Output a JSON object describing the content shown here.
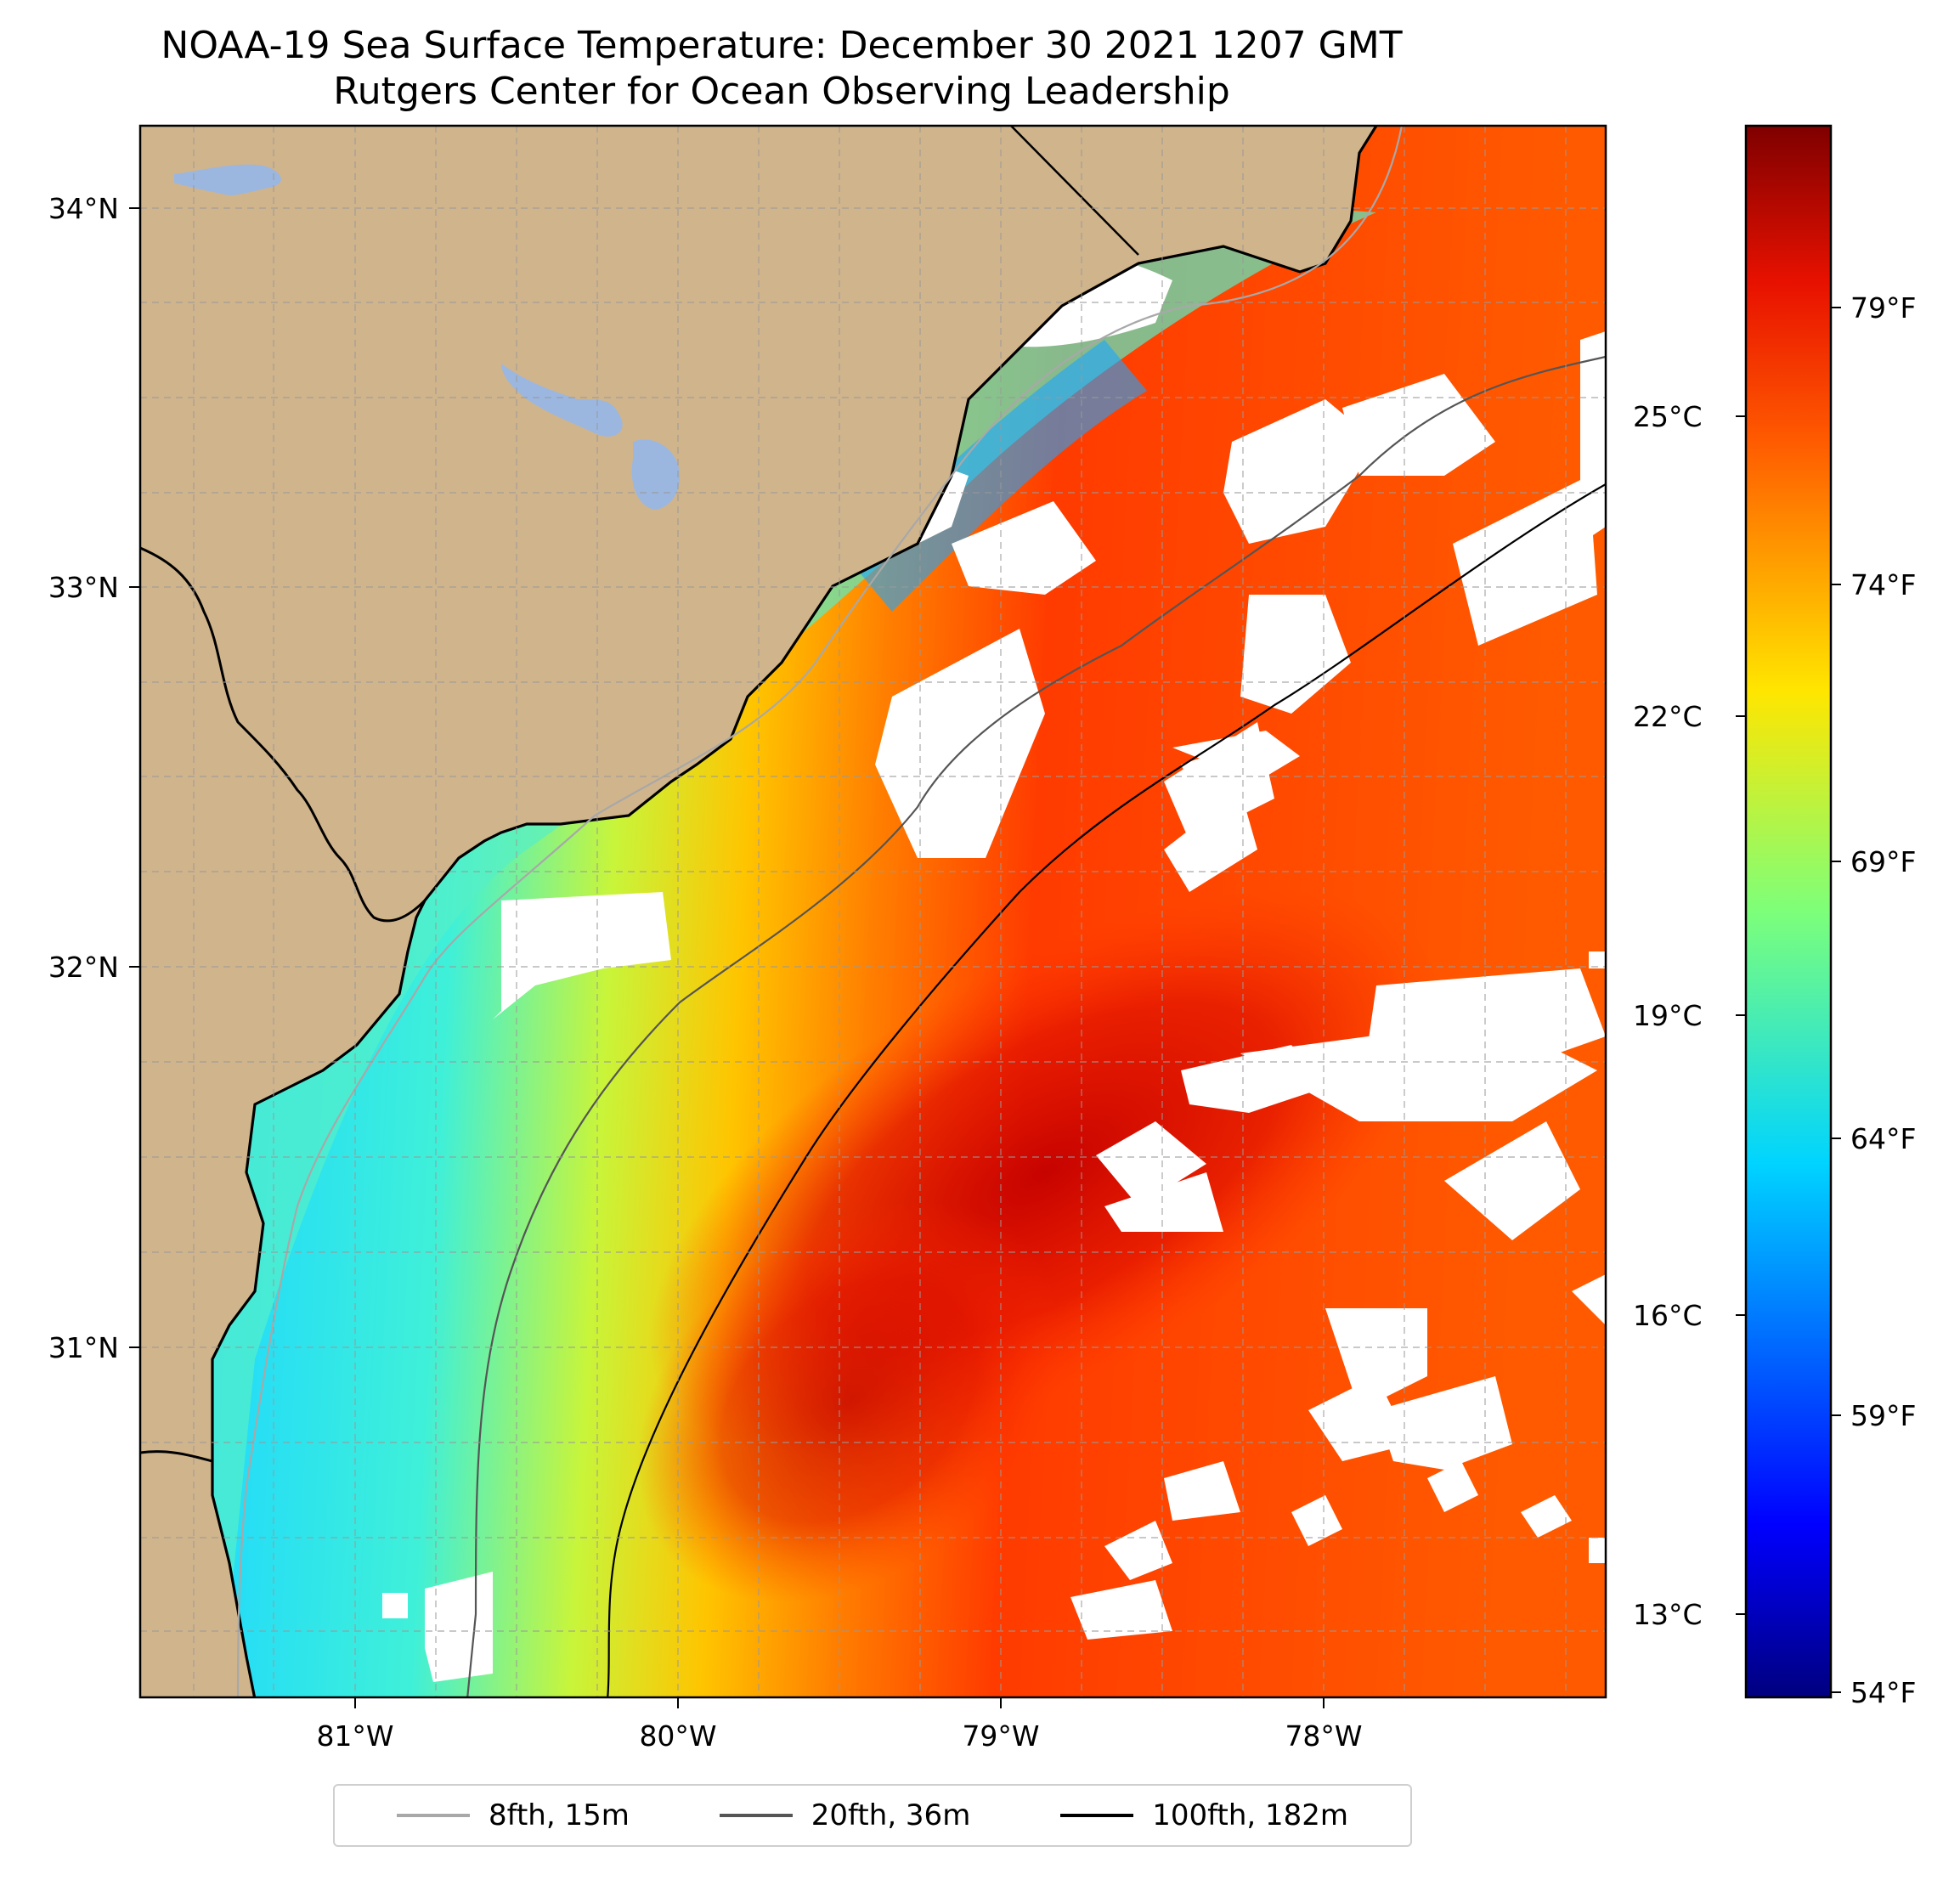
{
  "title": {
    "line1": "NOAA-19 Sea Surface Temperature: December 30 2021 1207 GMT",
    "line2": "Rutgers Center for Ocean Observing Leadership"
  },
  "map": {
    "lat_labels": [
      "34°N",
      "33°N",
      "32°N",
      "31°N"
    ],
    "lon_labels": [
      "81°W",
      "80°W",
      "79°W",
      "78°W"
    ],
    "colors": {
      "land": "#d0b48c",
      "lake": "#9bb7e0",
      "coastline": "#000000",
      "grid": "#9a9a9a",
      "cloud_mask": "#ffffff"
    }
  },
  "colorbar": {
    "celsius_labels": [
      "25°C",
      "22°C",
      "19°C",
      "16°C",
      "13°C"
    ],
    "fahrenheit_labels": [
      "79°F",
      "74°F",
      "69°F",
      "64°F",
      "59°F",
      "54°F"
    ],
    "colormap": "jet"
  },
  "legend": {
    "items": [
      {
        "label": "8fth, 15m",
        "color": "#a8a8a8"
      },
      {
        "label": "20fth, 36m",
        "color": "#555555"
      },
      {
        "label": "100fth, 182m",
        "color": "#000000"
      }
    ]
  }
}
